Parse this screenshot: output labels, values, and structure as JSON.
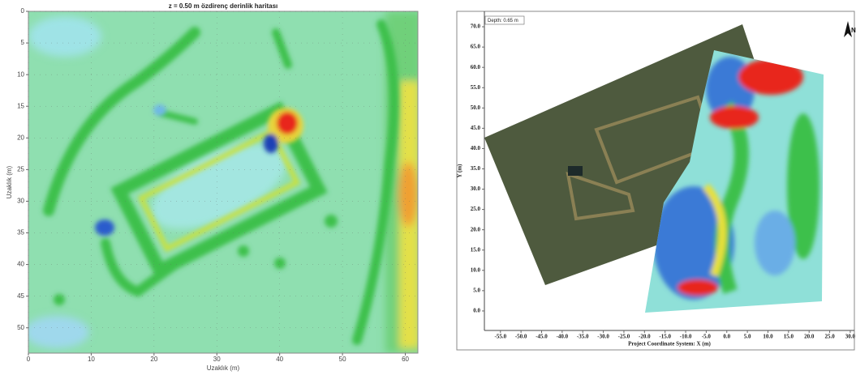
{
  "chart_data": [
    {
      "type": "heatmap",
      "title": "z = 0.50 m özdirenç derinlik haritası",
      "x_label": "Uzaklık (m)",
      "y_label": "Uzaklık (m)",
      "xlim": [
        0,
        62
      ],
      "ylim": [
        54,
        0
      ],
      "xticks": [
        0,
        10,
        20,
        30,
        40,
        50,
        60
      ],
      "yticks": [
        0,
        5,
        10,
        15,
        20,
        25,
        30,
        35,
        40,
        45,
        50
      ],
      "grid": true
    },
    {
      "type": "map",
      "annotation": "Depth: 0.65 m",
      "compass": "N",
      "x_label": "Project Coordinate System: X (m)",
      "y_label": "Y (m)",
      "xlim": [
        -58.9,
        31
      ],
      "ylim": [
        -4.8,
        73.8
      ],
      "xticks": [
        {
          "value": -55,
          "label": "-55.0"
        },
        {
          "value": -50,
          "label": "-50.0"
        },
        {
          "value": -45,
          "label": "-45.0"
        },
        {
          "value": -40,
          "label": "-40.0"
        },
        {
          "value": -35,
          "label": "-35.0"
        },
        {
          "value": -30,
          "label": "-30.0"
        },
        {
          "value": -25,
          "label": "-25.0"
        },
        {
          "value": -20,
          "label": "-20.0"
        },
        {
          "value": -15,
          "label": "-15.0"
        },
        {
          "value": -10,
          "label": "-10.0"
        },
        {
          "value": -5,
          "label": "-5.0"
        },
        {
          "value": 0,
          "label": "0.0"
        },
        {
          "value": 5,
          "label": "5.0"
        },
        {
          "value": 10,
          "label": "10.0"
        },
        {
          "value": 15,
          "label": "15.0"
        },
        {
          "value": 20,
          "label": "20.0"
        },
        {
          "value": 25,
          "label": "25.0"
        },
        {
          "value": 30,
          "label": "30.0"
        }
      ],
      "yticks": [
        {
          "value": 0,
          "label": "0.0"
        },
        {
          "value": 5,
          "label": "5.0"
        },
        {
          "value": 10,
          "label": "10.0"
        },
        {
          "value": 15,
          "label": "15.0"
        },
        {
          "value": 20,
          "label": "20.0"
        },
        {
          "value": 25,
          "label": "25.0"
        },
        {
          "value": 30,
          "label": "30.0"
        },
        {
          "value": 35,
          "label": "35.0"
        },
        {
          "value": 40,
          "label": "40.0"
        },
        {
          "value": 45,
          "label": "45.0"
        },
        {
          "value": 50,
          "label": "50.0"
        },
        {
          "value": 55,
          "label": "55.0"
        },
        {
          "value": 60,
          "label": "60.0"
        },
        {
          "value": 65,
          "label": "65.0"
        },
        {
          "value": 70,
          "label": "70.0"
        }
      ]
    }
  ]
}
